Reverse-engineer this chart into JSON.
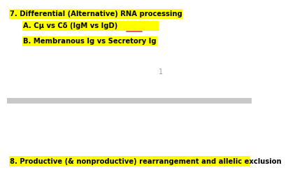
{
  "title7": "7. Differential (Alternative) RNA processing",
  "line_a": "A. Cμ vs Cδ (IgM vs IgD)",
  "line_b": "B. Membranous Ig vs Secretory Ig",
  "number_1": "1",
  "title8": "8. Productive (& nonproductive) rearrangement and allelic exclusion",
  "highlight_color": "#FFFF00",
  "text_color": "#000000",
  "underline_color": "#CC0000",
  "bg_color": "#FFFFFF",
  "divider_color": "#C8C8C8",
  "fig_width": 350,
  "fig_height": 233,
  "dpi": 100
}
